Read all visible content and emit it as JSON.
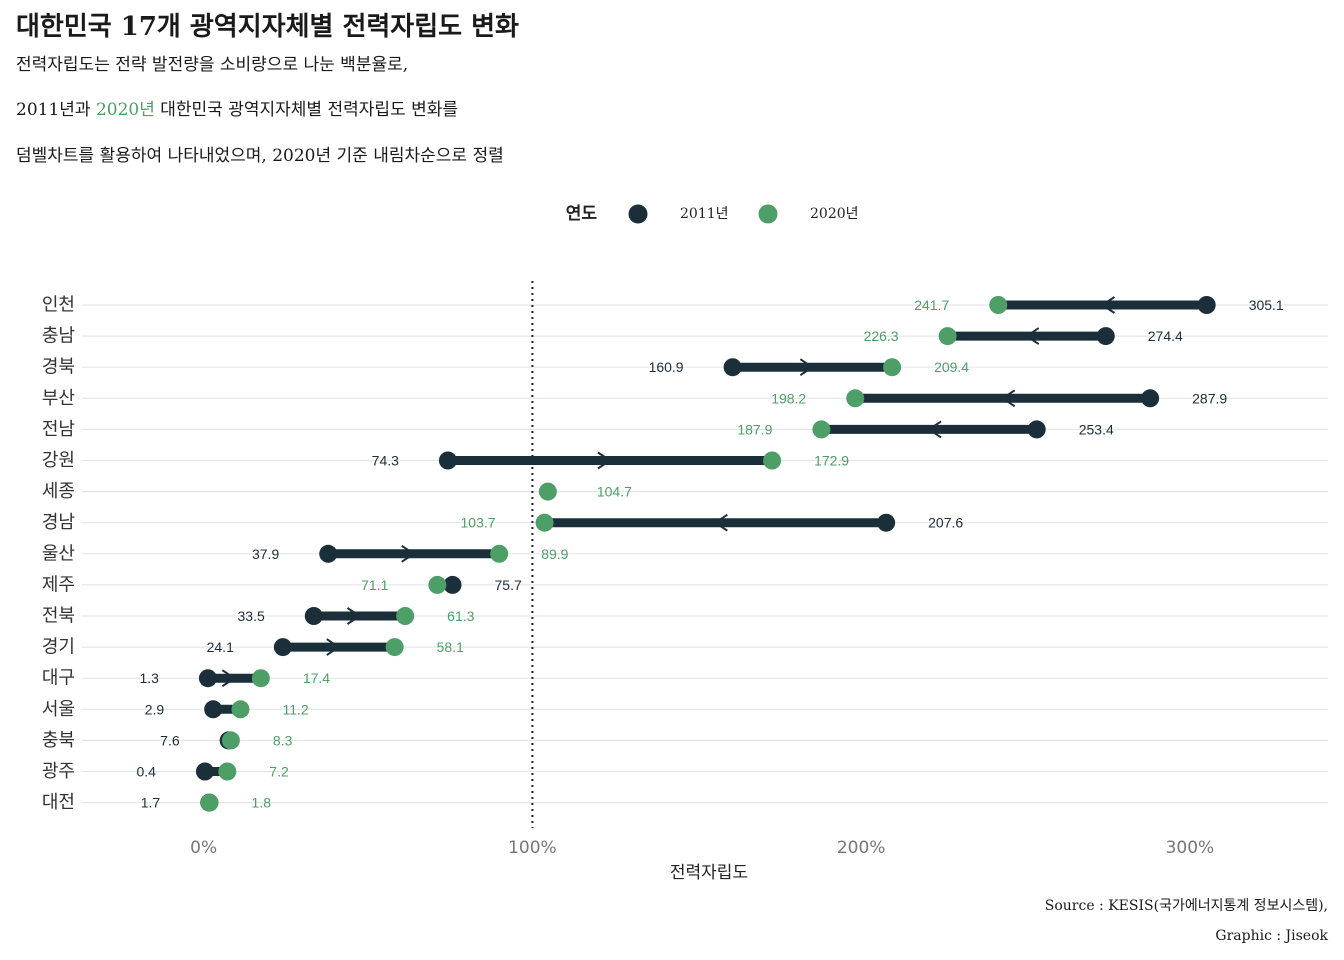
{
  "title": "대한민국 17개 광역지자체별 전력자립도 변화",
  "subtitle": {
    "line1": "전력자립도는 전략 발전량을 소비량으로 나눈 백분율로,",
    "line2_a": "2011년과 ",
    "line2_hl": "2020년",
    "line2_b": " 대한민국 광역지자체별 전력자립도 변화를",
    "line3": "덤벨차트를 활용하여 나타내었으며, 2020년 기준 내림차순으로 정렬"
  },
  "source": "Source : KESIS(국가에너지통계 정보시스템),",
  "credit": "Graphic : Jiseok",
  "colors": {
    "y2011": "#1b2f3a",
    "y2020": "#4e9e67",
    "grid": "#e6e6e6",
    "ref": "#1a1a5e"
  },
  "chart_data": {
    "type": "dumbbell",
    "xlabel": "전력자립도",
    "xticks": [
      "0%",
      "100%",
      "200%",
      "300%"
    ],
    "xtick_values": [
      0,
      100,
      200,
      300
    ],
    "xlim": [
      -37,
      342
    ],
    "reference_line": 100,
    "legend": {
      "title": "연도",
      "items": [
        "2011년",
        "2020년"
      ],
      "placement": "top-center"
    },
    "categories": [
      "인천",
      "충남",
      "경북",
      "부산",
      "전남",
      "강원",
      "세종",
      "경남",
      "울산",
      "제주",
      "전북",
      "경기",
      "대구",
      "서울",
      "충북",
      "광주",
      "대전"
    ],
    "series": [
      {
        "name": "2011년",
        "values": [
          305.1,
          274.4,
          160.9,
          287.9,
          253.4,
          74.3,
          null,
          207.6,
          37.9,
          75.7,
          33.5,
          24.1,
          1.3,
          2.9,
          7.6,
          0.4,
          1.7
        ]
      },
      {
        "name": "2020년",
        "values": [
          241.7,
          226.3,
          209.4,
          198.2,
          187.9,
          172.9,
          104.7,
          103.7,
          89.9,
          71.1,
          61.3,
          58.1,
          17.4,
          11.2,
          8.3,
          7.2,
          1.8
        ]
      }
    ]
  }
}
